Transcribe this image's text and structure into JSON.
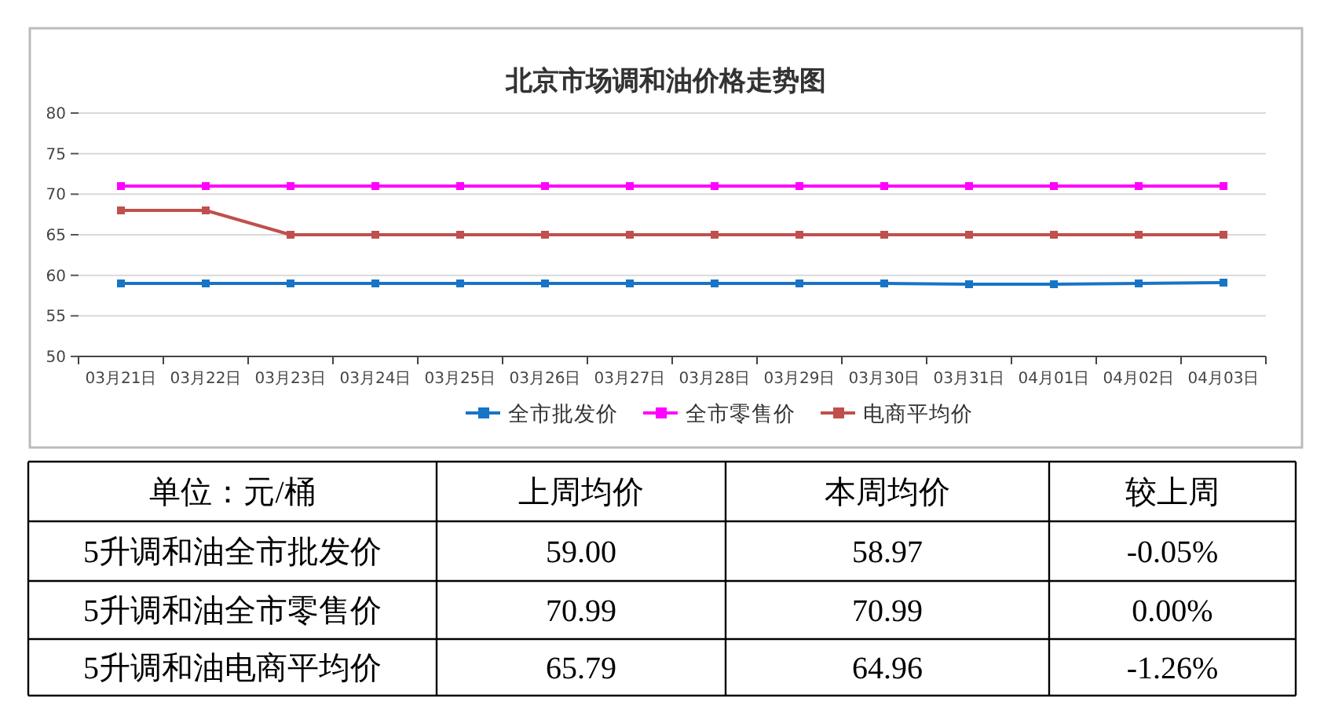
{
  "chart_data": [
    {
      "type": "line",
      "title": "北京市场调和油价格走势图",
      "categories": [
        "03月21日",
        "03月22日",
        "03月23日",
        "03月24日",
        "03月25日",
        "03月26日",
        "03月27日",
        "03月28日",
        "03月29日",
        "03月30日",
        "03月31日",
        "04月01日",
        "04月02日",
        "04月03日"
      ],
      "series": [
        {
          "name": "全市批发价",
          "color": "#1874c6",
          "values": [
            59,
            59,
            59,
            59,
            59,
            59,
            59,
            59,
            59,
            59,
            58.9,
            58.9,
            59,
            59.1
          ]
        },
        {
          "name": "全市零售价",
          "color": "#ff00ff",
          "values": [
            71,
            71,
            71,
            71,
            71,
            71,
            71,
            71,
            71,
            71,
            71,
            71,
            71,
            71
          ]
        },
        {
          "name": "电商平均价",
          "color": "#c0504d",
          "values": [
            68,
            68,
            65,
            65,
            65,
            65,
            65,
            65,
            65,
            65,
            65,
            65,
            65,
            65
          ]
        }
      ],
      "ylim": [
        50,
        80
      ],
      "yticks": [
        50,
        55,
        60,
        65,
        70,
        75,
        80
      ],
      "grid": "y",
      "legend": "bottom",
      "marker": "square",
      "line_style": "solid"
    },
    {
      "type": "other",
      "categories": [
        "单位：元/桶",
        "上周均价",
        "本周均价",
        "较上周"
      ],
      "y_categories": [
        "5升调和油全市批发价",
        "5升调和油全市零售价",
        "5升调和油电商平均价"
      ],
      "cell_labels": [
        [
          "59.00",
          "58.97",
          "-0.05%"
        ],
        [
          "70.99",
          "70.99",
          "0.00%"
        ],
        [
          "65.79",
          "64.96",
          "-1.26%"
        ]
      ]
    }
  ]
}
